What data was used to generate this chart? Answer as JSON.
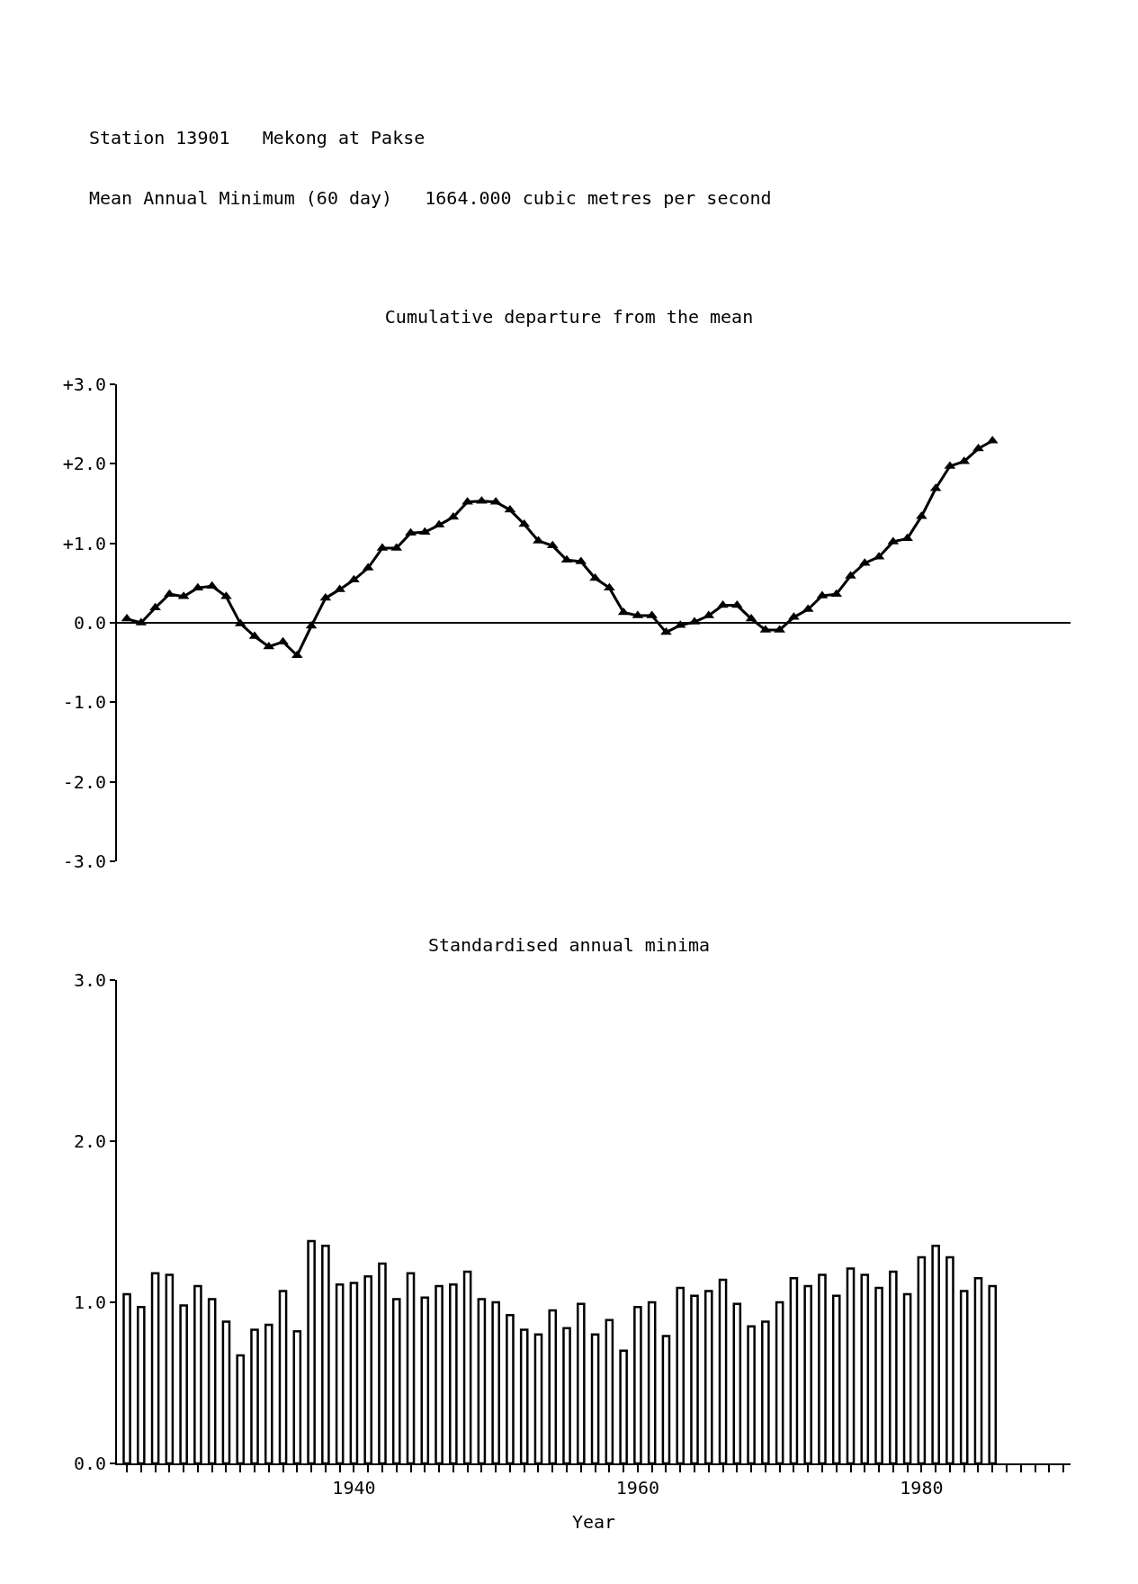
{
  "chart_data": [
    {
      "type": "line",
      "title": "Cumulative departure from the mean",
      "annotations": [
        "Station 13901   Mekong at Pakse",
        "Mean Annual Minimum (60 day)   1664.000 cubic metres per second"
      ],
      "x": [
        1924,
        1925,
        1926,
        1927,
        1928,
        1929,
        1930,
        1931,
        1932,
        1933,
        1934,
        1935,
        1936,
        1937,
        1938,
        1939,
        1940,
        1941,
        1942,
        1943,
        1944,
        1945,
        1946,
        1947,
        1948,
        1949,
        1950,
        1951,
        1952,
        1953,
        1954,
        1955,
        1956,
        1957,
        1958,
        1959,
        1960,
        1961,
        1962,
        1963,
        1964,
        1965,
        1966,
        1967,
        1968,
        1969,
        1970,
        1971,
        1972,
        1973,
        1974,
        1975,
        1976,
        1977,
        1978,
        1979,
        1980,
        1981,
        1982,
        1983,
        1984,
        1985
      ],
      "series": [
        {
          "color": "#000000",
          "values": [
            0.05,
            0.0,
            0.19,
            0.36,
            0.33,
            0.44,
            0.46,
            0.33,
            -0.01,
            -0.17,
            -0.3,
            -0.24,
            -0.41,
            -0.04,
            0.31,
            0.42,
            0.54,
            0.69,
            0.94,
            0.94,
            1.13,
            1.14,
            1.23,
            1.33,
            1.52,
            1.53,
            1.52,
            1.42,
            1.24,
            1.03,
            0.97,
            0.79,
            0.77,
            0.56,
            0.44,
            0.13,
            0.09,
            0.09,
            -0.12,
            -0.03,
            0.01,
            0.09,
            0.22,
            0.22,
            0.05,
            -0.09,
            -0.09,
            0.07,
            0.17,
            0.34,
            0.36,
            0.59,
            0.75,
            0.83,
            1.02,
            1.06,
            1.34,
            1.69,
            1.97,
            2.03,
            2.19,
            2.29
          ]
        }
      ],
      "marker": "triangle",
      "line_style": "solid",
      "xlim": [
        1923.3,
        1990.5
      ],
      "ylim": [
        -3,
        3
      ],
      "yticks": [
        {
          "value": 3,
          "label": "+3.0"
        },
        {
          "value": 2,
          "label": "+2.0"
        },
        {
          "value": 1,
          "label": "+1.0"
        },
        {
          "value": 0,
          "label": "0.0"
        },
        {
          "value": -1,
          "label": "-1.0"
        },
        {
          "value": -2,
          "label": "-2.0"
        },
        {
          "value": -3,
          "label": "-3.0"
        }
      ],
      "ref_lines": [
        {
          "axis": "y",
          "value": 0
        }
      ],
      "tick_labels": "y",
      "grid": false
    },
    {
      "type": "bar",
      "title": "Standardised annual minima",
      "xlabel": "Year",
      "x": [
        1924,
        1925,
        1926,
        1927,
        1928,
        1929,
        1930,
        1931,
        1932,
        1933,
        1934,
        1935,
        1936,
        1937,
        1938,
        1939,
        1940,
        1941,
        1942,
        1943,
        1944,
        1945,
        1946,
        1947,
        1948,
        1949,
        1950,
        1951,
        1952,
        1953,
        1954,
        1955,
        1956,
        1957,
        1958,
        1959,
        1960,
        1961,
        1962,
        1963,
        1964,
        1965,
        1966,
        1967,
        1968,
        1969,
        1970,
        1971,
        1972,
        1973,
        1974,
        1975,
        1976,
        1977,
        1978,
        1979,
        1980,
        1981,
        1982,
        1983,
        1984,
        1985
      ],
      "values": [
        1.05,
        0.97,
        1.18,
        1.17,
        0.98,
        1.1,
        1.02,
        0.88,
        0.67,
        0.83,
        0.86,
        1.07,
        0.82,
        1.38,
        1.35,
        1.11,
        1.12,
        1.16,
        1.24,
        1.02,
        1.18,
        1.03,
        1.1,
        1.11,
        1.19,
        1.02,
        1.0,
        0.92,
        0.83,
        0.8,
        0.95,
        0.84,
        0.99,
        0.8,
        0.89,
        0.7,
        0.97,
        1.0,
        0.79,
        1.09,
        1.04,
        1.07,
        1.14,
        0.99,
        0.85,
        0.88,
        1.0,
        1.15,
        1.1,
        1.17,
        1.04,
        1.21,
        1.17,
        1.09,
        1.19,
        1.05,
        1.28,
        1.35,
        1.28,
        1.07,
        1.15,
        1.1
      ],
      "color": "#ffffff",
      "xlim": [
        1923.3,
        1990.5
      ],
      "ylim": [
        0,
        3
      ],
      "xticks": [
        {
          "value": 1924,
          "label": null
        },
        {
          "value": 1925,
          "label": null
        },
        {
          "value": 1926,
          "label": null
        },
        {
          "value": 1927,
          "label": null
        },
        {
          "value": 1928,
          "label": null
        },
        {
          "value": 1929,
          "label": null
        },
        {
          "value": 1930,
          "label": null
        },
        {
          "value": 1931,
          "label": null
        },
        {
          "value": 1932,
          "label": null
        },
        {
          "value": 1933,
          "label": null
        },
        {
          "value": 1934,
          "label": null
        },
        {
          "value": 1935,
          "label": null
        },
        {
          "value": 1936,
          "label": null
        },
        {
          "value": 1937,
          "label": null
        },
        {
          "value": 1938,
          "label": null
        },
        {
          "value": 1939,
          "label": null
        },
        1940,
        {
          "value": 1941,
          "label": null
        },
        {
          "value": 1942,
          "label": null
        },
        {
          "value": 1943,
          "label": null
        },
        {
          "value": 1944,
          "label": null
        },
        {
          "value": 1945,
          "label": null
        },
        {
          "value": 1946,
          "label": null
        },
        {
          "value": 1947,
          "label": null
        },
        {
          "value": 1948,
          "label": null
        },
        {
          "value": 1949,
          "label": null
        },
        {
          "value": 1950,
          "label": null
        },
        {
          "value": 1951,
          "label": null
        },
        {
          "value": 1952,
          "label": null
        },
        {
          "value": 1953,
          "label": null
        },
        {
          "value": 1954,
          "label": null
        },
        {
          "value": 1955,
          "label": null
        },
        {
          "value": 1956,
          "label": null
        },
        {
          "value": 1957,
          "label": null
        },
        {
          "value": 1958,
          "label": null
        },
        {
          "value": 1959,
          "label": null
        },
        1960,
        {
          "value": 1961,
          "label": null
        },
        {
          "value": 1962,
          "label": null
        },
        {
          "value": 1963,
          "label": null
        },
        {
          "value": 1964,
          "label": null
        },
        {
          "value": 1965,
          "label": null
        },
        {
          "value": 1966,
          "label": null
        },
        {
          "value": 1967,
          "label": null
        },
        {
          "value": 1968,
          "label": null
        },
        {
          "value": 1969,
          "label": null
        },
        {
          "value": 1970,
          "label": null
        },
        {
          "value": 1971,
          "label": null
        },
        {
          "value": 1972,
          "label": null
        },
        {
          "value": 1973,
          "label": null
        },
        {
          "value": 1974,
          "label": null
        },
        {
          "value": 1975,
          "label": null
        },
        {
          "value": 1976,
          "label": null
        },
        {
          "value": 1977,
          "label": null
        },
        {
          "value": 1978,
          "label": null
        },
        {
          "value": 1979,
          "label": null
        },
        1980,
        {
          "value": 1981,
          "label": null
        },
        {
          "value": 1982,
          "label": null
        },
        {
          "value": 1983,
          "label": null
        },
        {
          "value": 1984,
          "label": null
        },
        {
          "value": 1985,
          "label": null
        },
        {
          "value": 1986,
          "label": null
        },
        {
          "value": 1987,
          "label": null
        },
        {
          "value": 1988,
          "label": null
        },
        {
          "value": 1989,
          "label": null
        },
        {
          "value": 1990,
          "label": null
        }
      ],
      "yticks": [
        {
          "value": 0,
          "label": "0.0"
        },
        {
          "value": 1,
          "label": "1.0"
        },
        {
          "value": 2,
          "label": "2.0"
        },
        {
          "value": 3,
          "label": "3.0"
        }
      ],
      "grid": false
    }
  ]
}
